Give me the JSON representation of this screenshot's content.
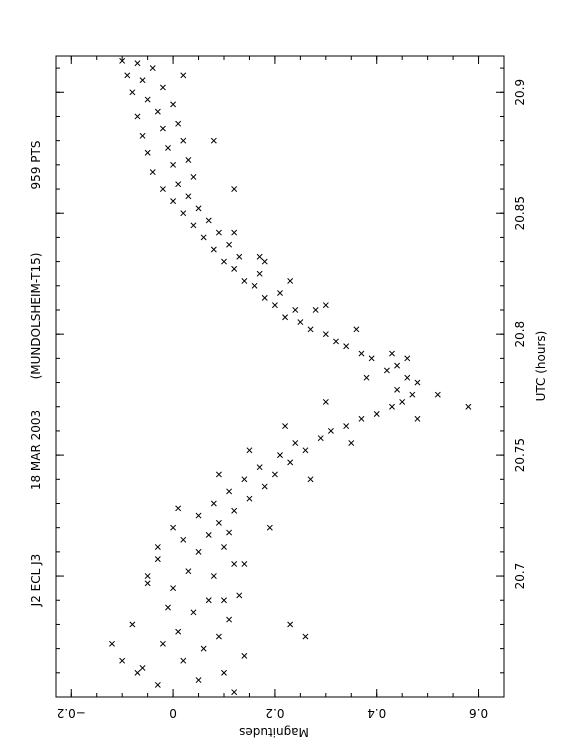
{
  "chart_data": {
    "type": "scatter",
    "orientation": "rotated-90-ccw",
    "header": {
      "object": "J2 ECL J3",
      "date": "18 MAR 2003",
      "observer": "(MUNDOLSHEIM-T15)",
      "count": "959 PTS"
    },
    "xlabel": "UTC (hours)",
    "ylabel": "Magnitudes",
    "xlim": [
      20.65,
      20.915
    ],
    "ylim": [
      -0.23,
      0.65
    ],
    "y_inverted": true,
    "x_ticks": [
      "20.7",
      "20.75",
      "20.8",
      "20.85",
      "20.9"
    ],
    "y_ticks": [
      "−0.2",
      "0",
      "0.2",
      "0.4",
      "0.6"
    ],
    "marker": "x",
    "grid": false,
    "legend": "none",
    "point_count": 959,
    "series": [
      {
        "points": [
          [
            20.652,
            0.12
          ],
          [
            20.655,
            -0.03
          ],
          [
            20.657,
            0.05
          ],
          [
            20.66,
            0.1
          ],
          [
            20.662,
            -0.06
          ],
          [
            20.665,
            0.02
          ],
          [
            20.667,
            0.14
          ],
          [
            20.67,
            0.06
          ],
          [
            20.672,
            -0.02
          ],
          [
            20.675,
            0.09
          ],
          [
            20.677,
            0.01
          ],
          [
            20.68,
            -0.08
          ],
          [
            20.682,
            0.11
          ],
          [
            20.685,
            0.04
          ],
          [
            20.687,
            -0.01
          ],
          [
            20.69,
            0.07
          ],
          [
            20.692,
            0.13
          ],
          [
            20.695,
            0.0
          ],
          [
            20.697,
            -0.05
          ],
          [
            20.7,
            0.08
          ],
          [
            20.702,
            0.03
          ],
          [
            20.705,
            0.12
          ],
          [
            20.707,
            -0.03
          ],
          [
            20.71,
            0.05
          ],
          [
            20.712,
            0.1
          ],
          [
            20.715,
            0.02
          ],
          [
            20.717,
            0.07
          ],
          [
            20.72,
            0.0
          ],
          [
            20.722,
            0.09
          ],
          [
            20.725,
            0.05
          ],
          [
            20.727,
            0.12
          ],
          [
            20.73,
            0.08
          ],
          [
            20.732,
            0.15
          ],
          [
            20.735,
            0.11
          ],
          [
            20.737,
            0.18
          ],
          [
            20.74,
            0.14
          ],
          [
            20.742,
            0.2
          ],
          [
            20.745,
            0.17
          ],
          [
            20.747,
            0.23
          ],
          [
            20.75,
            0.21
          ],
          [
            20.752,
            0.26
          ],
          [
            20.755,
            0.24
          ],
          [
            20.757,
            0.29
          ],
          [
            20.76,
            0.31
          ],
          [
            20.762,
            0.34
          ],
          [
            20.765,
            0.37
          ],
          [
            20.767,
            0.4
          ],
          [
            20.77,
            0.43
          ],
          [
            20.772,
            0.45
          ],
          [
            20.775,
            0.47
          ],
          [
            20.777,
            0.44
          ],
          [
            20.78,
            0.48
          ],
          [
            20.782,
            0.46
          ],
          [
            20.785,
            0.42
          ],
          [
            20.787,
            0.44
          ],
          [
            20.79,
            0.39
          ],
          [
            20.792,
            0.37
          ],
          [
            20.795,
            0.34
          ],
          [
            20.797,
            0.32
          ],
          [
            20.8,
            0.3
          ],
          [
            20.802,
            0.27
          ],
          [
            20.805,
            0.25
          ],
          [
            20.807,
            0.22
          ],
          [
            20.81,
            0.24
          ],
          [
            20.812,
            0.2
          ],
          [
            20.815,
            0.18
          ],
          [
            20.817,
            0.21
          ],
          [
            20.82,
            0.16
          ],
          [
            20.822,
            0.14
          ],
          [
            20.825,
            0.17
          ],
          [
            20.827,
            0.12
          ],
          [
            20.83,
            0.1
          ],
          [
            20.832,
            0.13
          ],
          [
            20.835,
            0.08
          ],
          [
            20.837,
            0.11
          ],
          [
            20.84,
            0.06
          ],
          [
            20.842,
            0.09
          ],
          [
            20.845,
            0.04
          ],
          [
            20.847,
            0.07
          ],
          [
            20.85,
            0.02
          ],
          [
            20.852,
            0.05
          ],
          [
            20.855,
            0.0
          ],
          [
            20.857,
            0.03
          ],
          [
            20.86,
            -0.02
          ],
          [
            20.862,
            0.01
          ],
          [
            20.865,
            0.04
          ],
          [
            20.867,
            -0.04
          ],
          [
            20.87,
            0.0
          ],
          [
            20.872,
            0.03
          ],
          [
            20.875,
            -0.05
          ],
          [
            20.877,
            -0.01
          ],
          [
            20.88,
            0.02
          ],
          [
            20.882,
            -0.06
          ],
          [
            20.885,
            -0.02
          ],
          [
            20.887,
            0.01
          ],
          [
            20.89,
            -0.07
          ],
          [
            20.892,
            -0.03
          ],
          [
            20.895,
            0.0
          ],
          [
            20.897,
            -0.05
          ],
          [
            20.9,
            -0.08
          ],
          [
            20.902,
            -0.02
          ],
          [
            20.905,
            -0.06
          ],
          [
            20.907,
            -0.09
          ],
          [
            20.91,
            -0.04
          ],
          [
            20.912,
            -0.07
          ],
          [
            20.913,
            -0.1
          ],
          [
            20.907,
            0.02
          ],
          [
            20.88,
            0.08
          ],
          [
            20.86,
            0.12
          ],
          [
            20.83,
            0.18
          ],
          [
            20.81,
            0.28
          ],
          [
            20.79,
            0.46
          ],
          [
            20.775,
            0.52
          ],
          [
            20.77,
            0.58
          ],
          [
            20.765,
            0.48
          ],
          [
            20.755,
            0.35
          ],
          [
            20.74,
            0.27
          ],
          [
            20.72,
            0.19
          ],
          [
            20.705,
            0.14
          ],
          [
            20.69,
            0.1
          ],
          [
            20.675,
            0.26
          ],
          [
            20.68,
            0.23
          ],
          [
            20.66,
            -0.07
          ],
          [
            20.665,
            -0.1
          ],
          [
            20.672,
            -0.12
          ],
          [
            20.7,
            -0.05
          ],
          [
            20.712,
            -0.03
          ],
          [
            20.718,
            0.11
          ],
          [
            20.728,
            0.01
          ],
          [
            20.742,
            0.09
          ],
          [
            20.752,
            0.15
          ],
          [
            20.762,
            0.22
          ],
          [
            20.772,
            0.3
          ],
          [
            20.782,
            0.38
          ],
          [
            20.792,
            0.43
          ],
          [
            20.802,
            0.36
          ],
          [
            20.812,
            0.3
          ],
          [
            20.822,
            0.23
          ],
          [
            20.832,
            0.17
          ],
          [
            20.842,
            0.12
          ]
        ]
      }
    ]
  }
}
